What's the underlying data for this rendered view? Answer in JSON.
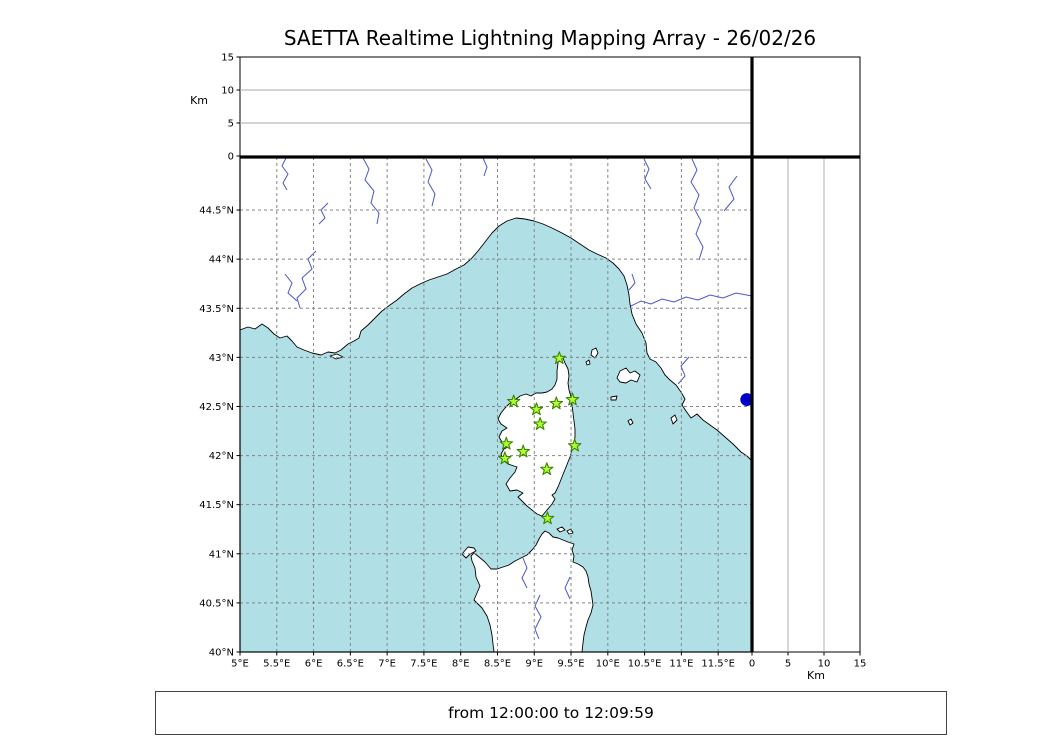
{
  "title": "SAETTA Realtime Lightning Mapping Array - 26/02/26",
  "status_bar": {
    "text": "from 12:00:00 to 12:09:59"
  },
  "colors": {
    "sea": "#b0e0e6",
    "land": "#ffffff",
    "coast": "#000000",
    "river": "#4a55cc",
    "grid": "#858585",
    "alt_grid": "#aaaaaa",
    "tick": "#000000",
    "station_fill": "#adff2f",
    "station_edge": "#3c8500",
    "event": "#0000cd"
  },
  "chart_data": {
    "type": "scatter",
    "title": "SAETTA Realtime Lightning Mapping Array - 26/02/26",
    "time_window_from": "12:00:00",
    "time_window_to": "12:09:59",
    "map": {
      "lon_range": [
        5.0,
        11.96
      ],
      "lat_range": [
        40.0,
        45.04
      ],
      "lon_tick_values": [
        5,
        5.5,
        6,
        6.5,
        7,
        7.5,
        8,
        8.5,
        9,
        9.5,
        10,
        10.5,
        11,
        11.5
      ],
      "lon_tick_labels": [
        "5°E",
        "5.5°E",
        "6°E",
        "6.5°E",
        "7°E",
        "7.5°E",
        "8°E",
        "8.5°E",
        "9°E",
        "9.5°E",
        "10°E",
        "10.5°E",
        "11°E",
        "11.5°E"
      ],
      "lat_tick_values": [
        44.5,
        44,
        43.5,
        43,
        42.5,
        42,
        41.5,
        41,
        40.5,
        40
      ],
      "lat_tick_labels": [
        "44.5°N",
        "44°N",
        "43.5°N",
        "43°N",
        "42.5°N",
        "42°N",
        "41.5°N",
        "41°N",
        "40.5°N",
        "40°N"
      ],
      "grid_style": "dashed",
      "station_marker": "star",
      "stations": [
        {
          "lon": 9.34,
          "lat": 42.99
        },
        {
          "lon": 8.72,
          "lat": 42.55
        },
        {
          "lon": 9.03,
          "lat": 42.47
        },
        {
          "lon": 9.3,
          "lat": 42.53
        },
        {
          "lon": 9.52,
          "lat": 42.57
        },
        {
          "lon": 9.08,
          "lat": 42.32
        },
        {
          "lon": 8.62,
          "lat": 42.12
        },
        {
          "lon": 9.55,
          "lat": 42.1
        },
        {
          "lon": 8.6,
          "lat": 41.97
        },
        {
          "lon": 8.85,
          "lat": 42.04
        },
        {
          "lon": 9.17,
          "lat": 41.86
        },
        {
          "lon": 9.18,
          "lat": 41.36
        }
      ],
      "events": [
        {
          "lon": 11.89,
          "lat": 42.57
        }
      ]
    },
    "altitude_top": {
      "axis_label": "Km",
      "range": [
        0,
        15
      ],
      "tick_values": [
        0,
        5,
        10,
        15
      ],
      "tick_labels": [
        "0",
        "5",
        "10",
        "15"
      ],
      "gridline_values": [
        5,
        10
      ],
      "points": []
    },
    "altitude_right": {
      "axis_label": "Km",
      "range": [
        0,
        15
      ],
      "tick_values": [
        0,
        5,
        10,
        15
      ],
      "tick_labels": [
        "0",
        "5",
        "10",
        "15"
      ],
      "gridline_values": [
        5,
        10
      ],
      "points": []
    }
  }
}
